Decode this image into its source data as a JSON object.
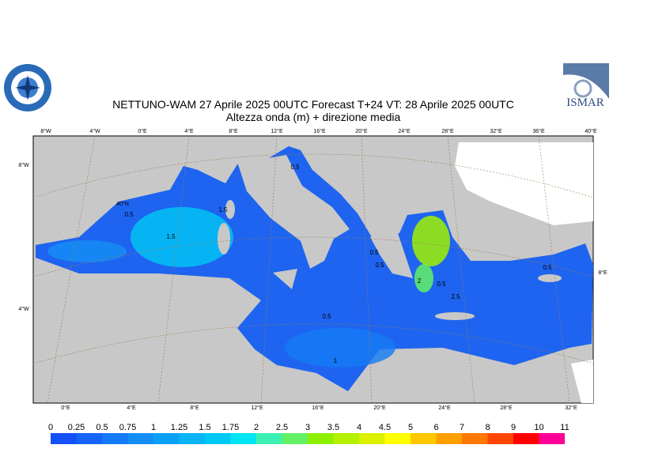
{
  "header": {
    "title": "NETTUNO-WAM  27   Aprile  2025 00UTC Forecast T+24 VT: 28   Aprile  2025 00UTC",
    "subtitle": "Altezza onda (m) + direzione media",
    "logo_right": "ISMAR"
  },
  "map": {
    "top_labels": [
      "8°W",
      "4°W",
      "0°E",
      "4°E",
      "8°E",
      "12°E",
      "16°E",
      "20°E",
      "24°E",
      "28°E",
      "32°E",
      "36°E",
      "40°E"
    ],
    "bottom_labels": [
      "0°E",
      "4°E",
      "8°E",
      "12°E",
      "16°E",
      "20°E",
      "24°E",
      "28°E",
      "32°E"
    ],
    "side_labels": [
      "8°W",
      "40°N",
      "4°W",
      "8°E"
    ],
    "contour_labels": [
      "0.5",
      "0.5",
      "1.5",
      "1.5",
      "0.5",
      "0.5",
      "2",
      "0.5",
      "2.5",
      "0.5",
      "1",
      "0.5"
    ]
  },
  "colorbar": {
    "ticks": [
      0,
      0.25,
      0.5,
      0.75,
      1,
      1.25,
      1.5,
      1.75,
      2,
      2.5,
      3,
      3.5,
      4,
      4.5,
      5,
      6,
      7,
      8,
      9,
      10,
      11
    ],
    "colors": [
      "#1450f5",
      "#1464f5",
      "#147af5",
      "#148ef5",
      "#0aa0f5",
      "#0ab4f5",
      "#00c8f5",
      "#00e6f5",
      "#3cf0b4",
      "#64f064",
      "#8cf000",
      "#b4f000",
      "#dcf000",
      "#ffff00",
      "#ffc800",
      "#ffa000",
      "#ff7800",
      "#ff4600",
      "#ff0000",
      "#ff0096"
    ]
  }
}
